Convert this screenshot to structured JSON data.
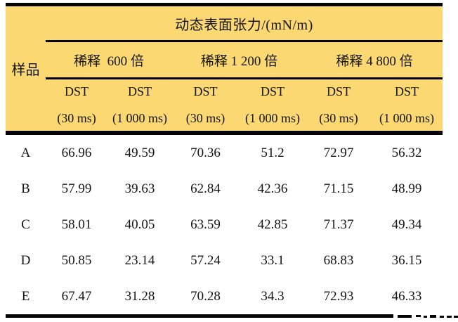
{
  "table": {
    "title": "动态表面张力/(mN/m)",
    "sample_header": "样品",
    "groups": [
      {
        "label": "稀释  600 倍"
      },
      {
        "label": "稀释 1 200 倍"
      },
      {
        "label": "稀释 4 800 倍"
      }
    ],
    "sub_headers": [
      {
        "line1": "DST",
        "line2": "(30 ms)"
      },
      {
        "line1": "DST",
        "line2": "(1 000 ms)"
      },
      {
        "line1": "DST",
        "line2": "(30 ms)"
      },
      {
        "line1": "DST",
        "line2": "(1 000 ms)"
      },
      {
        "line1": "DST",
        "line2": "(30 ms)"
      },
      {
        "line1": "DST",
        "line2": "(1 000 ms)"
      }
    ],
    "rows": [
      {
        "sample": "A",
        "values": [
          "66.96",
          "49.59",
          "70.36",
          "51.2",
          "72.97",
          "56.32"
        ]
      },
      {
        "sample": "B",
        "values": [
          "57.99",
          "39.63",
          "62.84",
          "42.36",
          "71.15",
          "48.99"
        ]
      },
      {
        "sample": "C",
        "values": [
          "58.01",
          "40.05",
          "63.59",
          "42.85",
          "71.37",
          "49.34"
        ]
      },
      {
        "sample": "D",
        "values": [
          "50.85",
          "23.14",
          "57.24",
          "33.1",
          "68.83",
          "36.15"
        ]
      },
      {
        "sample": "E",
        "values": [
          "67.47",
          "31.28",
          "70.28",
          "34.3",
          "72.93",
          "46.33"
        ]
      }
    ],
    "colors": {
      "header_bg": "#FCD873",
      "border": "#050505",
      "text": "#141414"
    }
  }
}
